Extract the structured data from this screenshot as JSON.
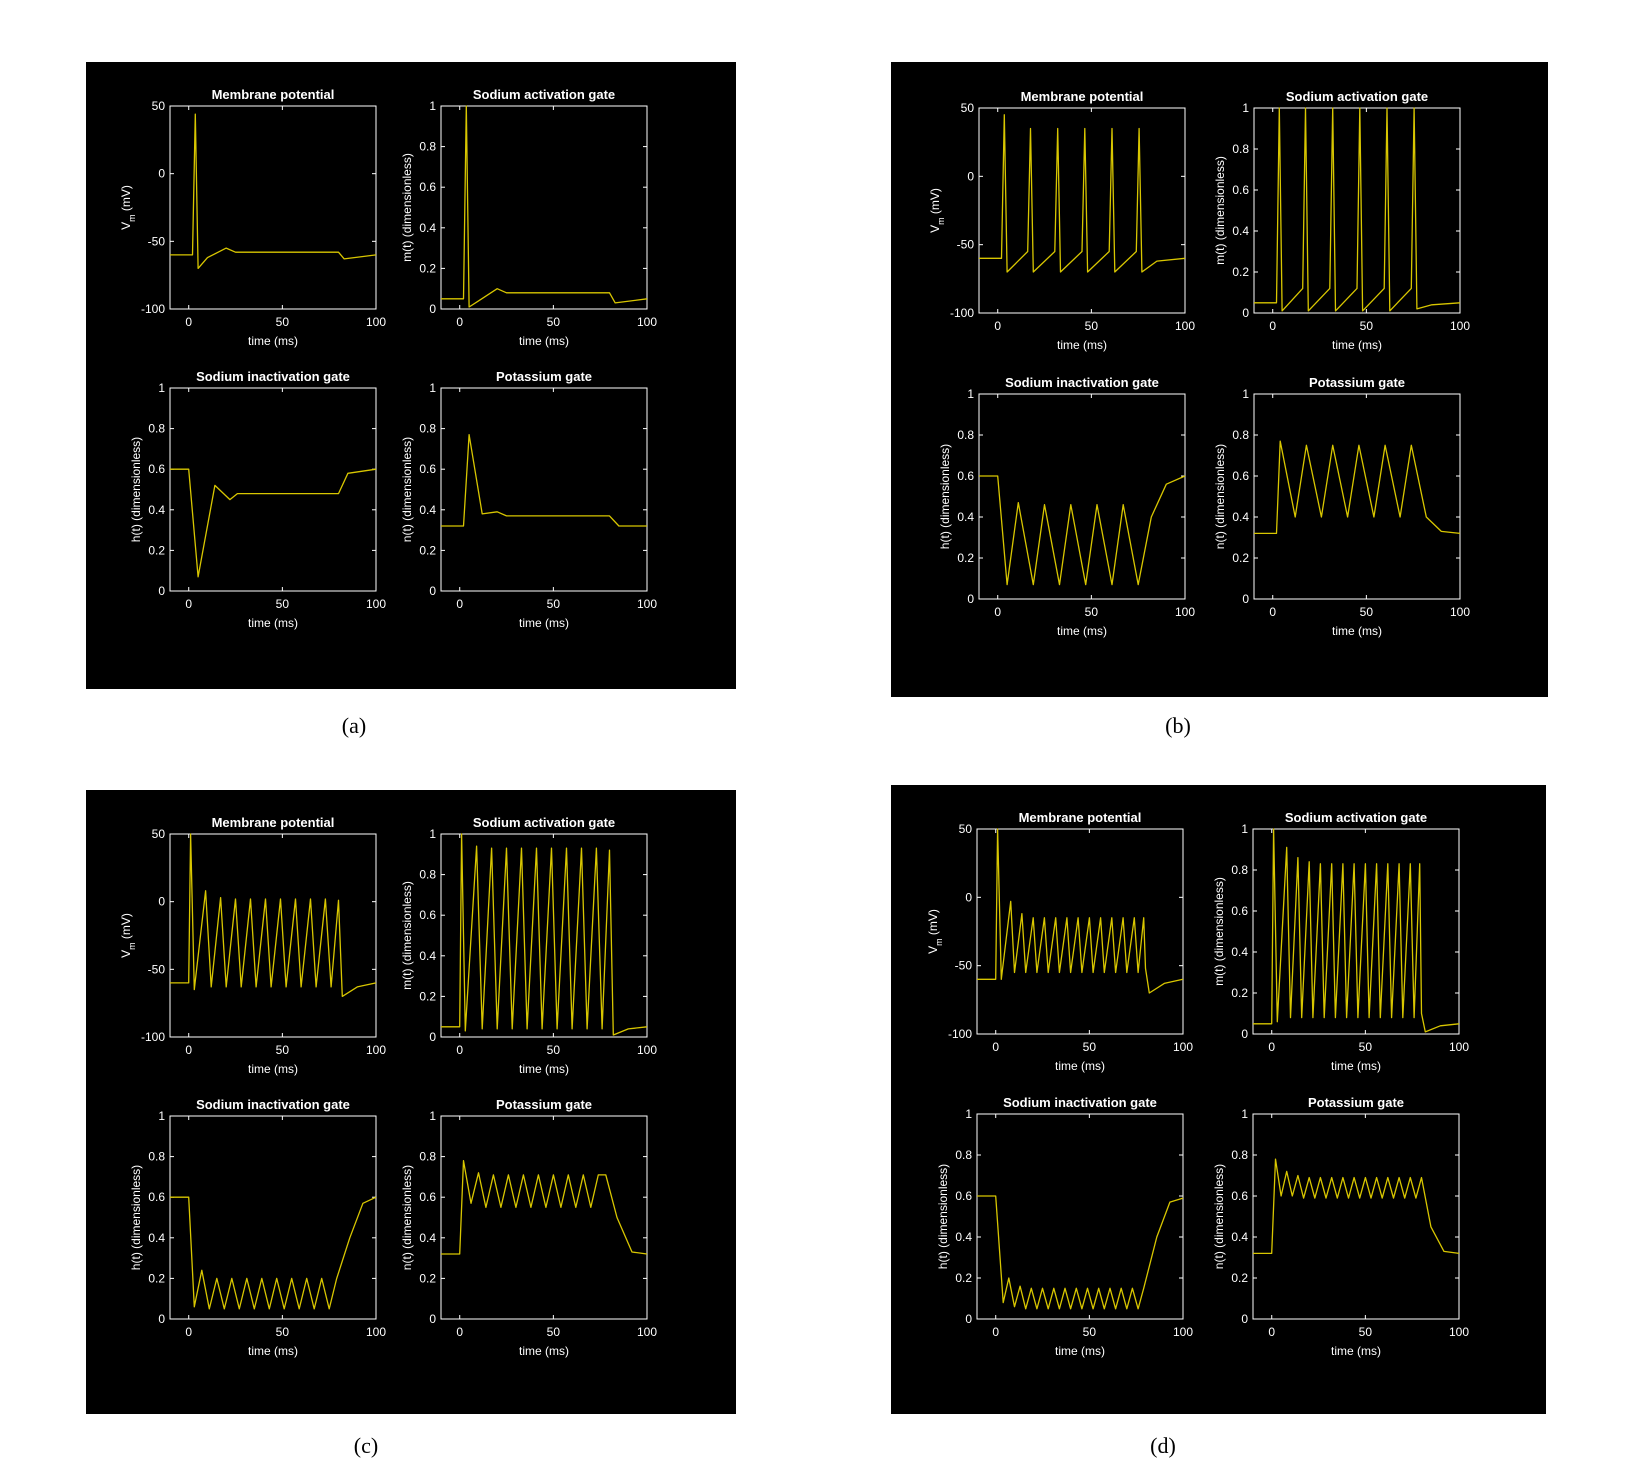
{
  "colors": {
    "background": "#000000",
    "axes": "#ffffff",
    "trace": "#d8c600",
    "page": "#ffffff"
  },
  "panels": [
    {
      "caption": "(a)",
      "regime": "single"
    },
    {
      "caption": "(b)",
      "regime": "low"
    },
    {
      "caption": "(c)",
      "regime": "mid"
    },
    {
      "caption": "(d)",
      "regime": "high"
    }
  ],
  "chart_data": [
    {
      "panel": "(a)",
      "type": "line",
      "title": "Membrane potential",
      "xlabel": "time (ms)",
      "ylabel": "V_m (mV)",
      "xlim": [
        -10,
        100
      ],
      "ylim": [
        -100,
        50
      ],
      "xticks": [
        0,
        50,
        100
      ],
      "yticks": [
        -100,
        -50,
        0,
        50
      ],
      "x": [
        -10,
        2,
        3.5,
        5,
        10,
        20,
        25,
        80,
        83,
        100
      ],
      "y": [
        -60,
        -60,
        44,
        -70,
        -62,
        -55,
        -58,
        -58,
        -63,
        -60
      ]
    },
    {
      "panel": "(a)",
      "type": "line",
      "title": "Sodium activation gate",
      "xlabel": "time (ms)",
      "ylabel": "m(t) (dimensionless)",
      "xlim": [
        -10,
        100
      ],
      "ylim": [
        0,
        1
      ],
      "xticks": [
        0,
        50,
        100
      ],
      "yticks": [
        0,
        0.2,
        0.4,
        0.6,
        0.8,
        1
      ],
      "x": [
        -10,
        2,
        3.5,
        5,
        10,
        20,
        25,
        80,
        83,
        100
      ],
      "y": [
        0.05,
        0.05,
        1.0,
        0.01,
        0.04,
        0.1,
        0.08,
        0.08,
        0.03,
        0.05
      ]
    },
    {
      "panel": "(a)",
      "type": "line",
      "title": "Sodium inactivation gate",
      "xlabel": "time (ms)",
      "ylabel": "h(t) (dimensionless)",
      "xlim": [
        -10,
        100
      ],
      "ylim": [
        0,
        1
      ],
      "xticks": [
        0,
        50,
        100
      ],
      "yticks": [
        0,
        0.2,
        0.4,
        0.6,
        0.8,
        1
      ],
      "x": [
        -10,
        0,
        5,
        14,
        22,
        26,
        80,
        85,
        100
      ],
      "y": [
        0.6,
        0.6,
        0.07,
        0.52,
        0.45,
        0.48,
        0.48,
        0.58,
        0.6
      ]
    },
    {
      "panel": "(a)",
      "type": "line",
      "title": "Potassium gate",
      "xlabel": "time (ms)",
      "ylabel": "n(t) (dimensionless)",
      "xlim": [
        -10,
        100
      ],
      "ylim": [
        0,
        1
      ],
      "xticks": [
        0,
        50,
        100
      ],
      "yticks": [
        0,
        0.2,
        0.4,
        0.6,
        0.8,
        1
      ],
      "x": [
        -10,
        2,
        5,
        12,
        20,
        25,
        80,
        85,
        100
      ],
      "y": [
        0.32,
        0.32,
        0.77,
        0.38,
        0.39,
        0.37,
        0.37,
        0.32,
        0.32
      ]
    },
    {
      "panel": "(b)",
      "type": "line",
      "title": "Membrane potential",
      "xlabel": "time (ms)",
      "ylabel": "V_m (mV)",
      "xlim": [
        -10,
        100
      ],
      "ylim": [
        -100,
        50
      ],
      "xticks": [
        0,
        50,
        100
      ],
      "yticks": [
        -100,
        -50,
        0,
        50
      ],
      "x": [
        -10,
        2,
        3.5,
        5,
        16,
        17.5,
        19,
        30.5,
        32,
        33.5,
        45,
        46.5,
        48,
        59.5,
        61,
        62.5,
        74,
        75.5,
        77,
        85,
        100
      ],
      "y": [
        -60,
        -60,
        45,
        -70,
        -55,
        35,
        -70,
        -55,
        35,
        -70,
        -55,
        35,
        -70,
        -55,
        35,
        -70,
        -55,
        35,
        -70,
        -62,
        -60
      ]
    },
    {
      "panel": "(b)",
      "type": "line",
      "title": "Sodium activation gate",
      "xlabel": "time (ms)",
      "ylabel": "m(t) (dimensionless)",
      "xlim": [
        -10,
        100
      ],
      "ylim": [
        0,
        1
      ],
      "xticks": [
        0,
        50,
        100
      ],
      "yticks": [
        0,
        0.2,
        0.4,
        0.6,
        0.8,
        1
      ],
      "x": [
        -10,
        2,
        3.5,
        5,
        16,
        17.5,
        19,
        30.5,
        32,
        33.5,
        45,
        46.5,
        48,
        59.5,
        61,
        62.5,
        74,
        75.5,
        77,
        85,
        100
      ],
      "y": [
        0.05,
        0.05,
        1.0,
        0.01,
        0.12,
        1.0,
        0.01,
        0.12,
        1.0,
        0.01,
        0.12,
        1.0,
        0.01,
        0.12,
        1.0,
        0.01,
        0.12,
        1.0,
        0.02,
        0.04,
        0.05
      ]
    },
    {
      "panel": "(b)",
      "type": "line",
      "title": "Sodium inactivation gate",
      "xlabel": "time (ms)",
      "ylabel": "h(t) (dimensionless)",
      "xlim": [
        -10,
        100
      ],
      "ylim": [
        0,
        1
      ],
      "xticks": [
        0,
        50,
        100
      ],
      "yticks": [
        0,
        0.2,
        0.4,
        0.6,
        0.8,
        1
      ],
      "x": [
        -10,
        0,
        5,
        11,
        19,
        25,
        33,
        39,
        47,
        53,
        61,
        67,
        75,
        82,
        90,
        100
      ],
      "y": [
        0.6,
        0.6,
        0.07,
        0.47,
        0.07,
        0.46,
        0.07,
        0.46,
        0.07,
        0.46,
        0.07,
        0.46,
        0.07,
        0.4,
        0.56,
        0.6
      ]
    },
    {
      "panel": "(b)",
      "type": "line",
      "title": "Potassium gate",
      "xlabel": "time (ms)",
      "ylabel": "n(t) (dimensionless)",
      "xlim": [
        -10,
        100
      ],
      "ylim": [
        0,
        1
      ],
      "xticks": [
        0,
        50,
        100
      ],
      "yticks": [
        0,
        0.2,
        0.4,
        0.6,
        0.8,
        1
      ],
      "x": [
        -10,
        2,
        4,
        12,
        18,
        26,
        32,
        40,
        46,
        54,
        60,
        68,
        74,
        82,
        90,
        100
      ],
      "y": [
        0.32,
        0.32,
        0.77,
        0.4,
        0.75,
        0.4,
        0.75,
        0.4,
        0.75,
        0.4,
        0.75,
        0.4,
        0.75,
        0.4,
        0.33,
        0.32
      ]
    },
    {
      "panel": "(c)",
      "type": "line",
      "title": "Membrane potential",
      "xlabel": "time (ms)",
      "ylabel": "V_m (mV)",
      "xlim": [
        -10,
        100
      ],
      "ylim": [
        -100,
        50
      ],
      "xticks": [
        0,
        50,
        100
      ],
      "yticks": [
        -100,
        -50,
        0,
        50
      ],
      "x": [
        -10,
        0,
        1,
        3,
        9,
        12,
        17,
        20,
        25,
        28,
        33,
        36,
        41,
        44,
        49,
        52,
        57,
        60,
        65,
        68,
        73,
        76,
        80,
        82,
        90,
        100
      ],
      "y": [
        -60,
        -60,
        50,
        -65,
        8,
        -63,
        3,
        -63,
        2,
        -63,
        2,
        -63,
        2,
        -63,
        2,
        -63,
        2,
        -63,
        2,
        -63,
        2,
        -63,
        1,
        -70,
        -63,
        -60
      ]
    },
    {
      "panel": "(c)",
      "type": "line",
      "title": "Sodium activation gate",
      "xlabel": "time (ms)",
      "ylabel": "m(t) (dimensionless)",
      "xlim": [
        -10,
        100
      ],
      "ylim": [
        0,
        1
      ],
      "xticks": [
        0,
        50,
        100
      ],
      "yticks": [
        0,
        0.2,
        0.4,
        0.6,
        0.8,
        1
      ],
      "x": [
        -10,
        0,
        1,
        3,
        9,
        12,
        17,
        20,
        25,
        28,
        33,
        36,
        41,
        44,
        49,
        52,
        57,
        60,
        65,
        68,
        73,
        76,
        80,
        82,
        90,
        100
      ],
      "y": [
        0.05,
        0.05,
        1.0,
        0.03,
        0.94,
        0.04,
        0.93,
        0.04,
        0.93,
        0.04,
        0.93,
        0.04,
        0.93,
        0.04,
        0.93,
        0.04,
        0.93,
        0.04,
        0.93,
        0.04,
        0.93,
        0.04,
        0.92,
        0.01,
        0.04,
        0.05
      ]
    },
    {
      "panel": "(c)",
      "type": "line",
      "title": "Sodium inactivation gate",
      "xlabel": "time (ms)",
      "ylabel": "h(t) (dimensionless)",
      "xlim": [
        -10,
        100
      ],
      "ylim": [
        0,
        1
      ],
      "xticks": [
        0,
        50,
        100
      ],
      "yticks": [
        0,
        0.2,
        0.4,
        0.6,
        0.8,
        1
      ],
      "x": [
        -10,
        0,
        3,
        7,
        11,
        15,
        19,
        23,
        27,
        31,
        35,
        39,
        43,
        47,
        51,
        55,
        59,
        63,
        67,
        71,
        75,
        79,
        86,
        93,
        100
      ],
      "y": [
        0.6,
        0.6,
        0.06,
        0.24,
        0.05,
        0.2,
        0.05,
        0.2,
        0.05,
        0.2,
        0.05,
        0.2,
        0.05,
        0.2,
        0.05,
        0.2,
        0.05,
        0.2,
        0.05,
        0.2,
        0.05,
        0.2,
        0.4,
        0.57,
        0.6
      ]
    },
    {
      "panel": "(c)",
      "type": "line",
      "title": "Potassium gate",
      "xlabel": "time (ms)",
      "ylabel": "n(t) (dimensionless)",
      "xlim": [
        -10,
        100
      ],
      "ylim": [
        0,
        1
      ],
      "xticks": [
        0,
        50,
        100
      ],
      "yticks": [
        0,
        0.2,
        0.4,
        0.6,
        0.8,
        1
      ],
      "x": [
        -10,
        0,
        2,
        6,
        10,
        14,
        18,
        22,
        26,
        30,
        34,
        38,
        42,
        46,
        50,
        54,
        58,
        62,
        66,
        70,
        74,
        78,
        84,
        92,
        100
      ],
      "y": [
        0.32,
        0.32,
        0.78,
        0.57,
        0.72,
        0.55,
        0.71,
        0.55,
        0.71,
        0.55,
        0.71,
        0.55,
        0.71,
        0.55,
        0.71,
        0.55,
        0.71,
        0.55,
        0.71,
        0.55,
        0.71,
        0.71,
        0.5,
        0.33,
        0.32
      ]
    },
    {
      "panel": "(d)",
      "type": "line",
      "title": "Membrane potential",
      "xlabel": "time (ms)",
      "ylabel": "V_m (mV)",
      "xlim": [
        -10,
        100
      ],
      "ylim": [
        -100,
        50
      ],
      "xticks": [
        0,
        50,
        100
      ],
      "yticks": [
        -100,
        -50,
        0,
        50
      ],
      "x": [
        -10,
        0,
        1,
        3,
        8,
        10,
        14,
        16,
        20,
        22,
        26,
        28,
        32,
        34,
        38,
        40,
        44,
        46,
        50,
        52,
        56,
        58,
        62,
        64,
        68,
        70,
        74,
        76,
        79,
        80,
        82,
        90,
        100
      ],
      "y": [
        -60,
        -60,
        50,
        -60,
        -3,
        -55,
        -12,
        -55,
        -15,
        -55,
        -15,
        -55,
        -15,
        -55,
        -15,
        -55,
        -15,
        -55,
        -15,
        -55,
        -15,
        -55,
        -15,
        -55,
        -15,
        -55,
        -15,
        -55,
        -15,
        -52,
        -70,
        -63,
        -60
      ]
    },
    {
      "panel": "(d)",
      "type": "line",
      "title": "Sodium activation gate",
      "xlabel": "time (ms)",
      "ylabel": "m(t) (dimensionless)",
      "xlim": [
        -10,
        100
      ],
      "ylim": [
        0,
        1
      ],
      "xticks": [
        0,
        50,
        100
      ],
      "yticks": [
        0,
        0.2,
        0.4,
        0.6,
        0.8,
        1
      ],
      "x": [
        -10,
        0,
        1,
        3,
        8,
        10,
        14,
        16,
        20,
        22,
        26,
        28,
        32,
        34,
        38,
        40,
        44,
        46,
        50,
        52,
        56,
        58,
        62,
        64,
        68,
        70,
        74,
        76,
        79,
        80,
        82,
        90,
        100
      ],
      "y": [
        0.05,
        0.05,
        1.0,
        0.06,
        0.91,
        0.08,
        0.86,
        0.08,
        0.84,
        0.08,
        0.83,
        0.08,
        0.83,
        0.08,
        0.83,
        0.08,
        0.83,
        0.08,
        0.83,
        0.08,
        0.83,
        0.08,
        0.83,
        0.08,
        0.83,
        0.08,
        0.83,
        0.08,
        0.83,
        0.1,
        0.01,
        0.04,
        0.05
      ]
    },
    {
      "panel": "(d)",
      "type": "line",
      "title": "Sodium inactivation gate",
      "xlabel": "time (ms)",
      "ylabel": "h(t) (dimensionless)",
      "xlim": [
        -10,
        100
      ],
      "ylim": [
        0,
        1
      ],
      "xticks": [
        0,
        50,
        100
      ],
      "yticks": [
        0,
        0.2,
        0.4,
        0.6,
        0.8,
        1
      ],
      "x": [
        -10,
        0,
        4,
        7,
        10,
        13,
        16,
        19,
        22,
        25,
        28,
        31,
        34,
        37,
        40,
        43,
        46,
        49,
        52,
        55,
        58,
        61,
        64,
        67,
        70,
        73,
        76,
        79,
        86,
        93,
        100
      ],
      "y": [
        0.6,
        0.6,
        0.08,
        0.2,
        0.06,
        0.16,
        0.05,
        0.15,
        0.05,
        0.15,
        0.05,
        0.15,
        0.05,
        0.15,
        0.05,
        0.15,
        0.05,
        0.15,
        0.05,
        0.15,
        0.05,
        0.15,
        0.05,
        0.15,
        0.05,
        0.15,
        0.05,
        0.15,
        0.4,
        0.57,
        0.59
      ]
    },
    {
      "panel": "(d)",
      "type": "line",
      "title": "Potassium gate",
      "xlabel": "time (ms)",
      "ylabel": "n(t) (dimensionless)",
      "xlim": [
        -10,
        100
      ],
      "ylim": [
        0,
        1
      ],
      "xticks": [
        0,
        50,
        100
      ],
      "yticks": [
        0,
        0.2,
        0.4,
        0.6,
        0.8,
        1
      ],
      "x": [
        -10,
        0,
        2,
        5,
        8,
        11,
        14,
        17,
        20,
        23,
        26,
        29,
        32,
        35,
        38,
        41,
        44,
        47,
        50,
        53,
        56,
        59,
        62,
        65,
        68,
        71,
        74,
        77,
        80,
        85,
        92,
        100
      ],
      "y": [
        0.32,
        0.32,
        0.78,
        0.6,
        0.72,
        0.6,
        0.7,
        0.59,
        0.69,
        0.59,
        0.69,
        0.59,
        0.69,
        0.59,
        0.69,
        0.59,
        0.69,
        0.59,
        0.69,
        0.59,
        0.69,
        0.59,
        0.69,
        0.59,
        0.69,
        0.59,
        0.69,
        0.59,
        0.69,
        0.45,
        0.33,
        0.32
      ]
    }
  ]
}
